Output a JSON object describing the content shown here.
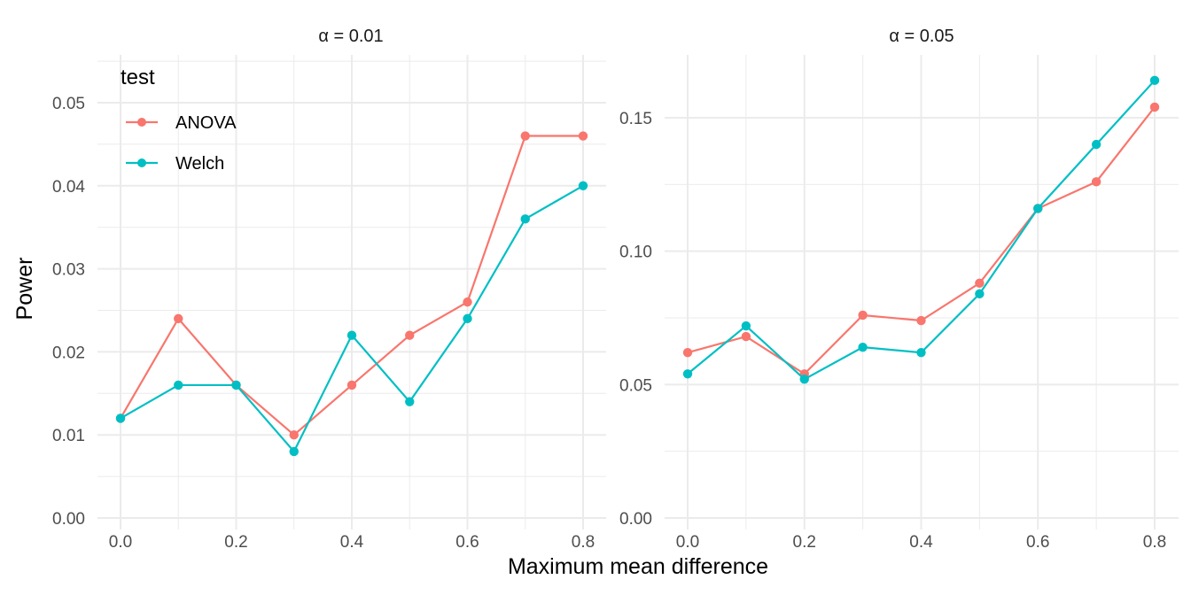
{
  "chart_data": [
    {
      "type": "line",
      "title": "α = 0.01",
      "xlabel": "Maximum mean difference",
      "ylabel": "Power",
      "x": [
        0.0,
        0.1,
        0.2,
        0.3,
        0.4,
        0.5,
        0.6,
        0.7,
        0.8
      ],
      "xticks": [
        "0.0",
        "0.2",
        "0.4",
        "0.6",
        "0.8"
      ],
      "xtick_values": [
        0.0,
        0.2,
        0.4,
        0.6,
        0.8
      ],
      "yticks": [
        "0.00",
        "0.01",
        "0.02",
        "0.03",
        "0.04",
        "0.05"
      ],
      "ytick_values": [
        0,
        0.01,
        0.02,
        0.03,
        0.04,
        0.05
      ],
      "ylim": [
        0,
        0.05
      ],
      "grid": true,
      "series": [
        {
          "name": "ANOVA",
          "color": "#F8766D",
          "values": [
            0.012,
            0.024,
            0.016,
            0.01,
            0.016,
            0.022,
            0.026,
            0.046,
            0.046
          ]
        },
        {
          "name": "Welch",
          "color": "#00BFC4",
          "values": [
            0.012,
            0.016,
            0.016,
            0.008,
            0.022,
            0.014,
            0.024,
            0.036,
            0.04
          ]
        }
      ]
    },
    {
      "type": "line",
      "title": "α = 0.05",
      "xlabel": "Maximum mean difference",
      "ylabel": "Power",
      "x": [
        0.0,
        0.1,
        0.2,
        0.3,
        0.4,
        0.5,
        0.6,
        0.7,
        0.8
      ],
      "xticks": [
        "0.0",
        "0.2",
        "0.4",
        "0.6",
        "0.8"
      ],
      "xtick_values": [
        0.0,
        0.2,
        0.4,
        0.6,
        0.8
      ],
      "yticks": [
        "0.00",
        "0.05",
        "0.10",
        "0.15"
      ],
      "ytick_values": [
        0,
        0.05,
        0.1,
        0.15
      ],
      "ylim": [
        0,
        0.15
      ],
      "grid": true,
      "series": [
        {
          "name": "ANOVA",
          "color": "#F8766D",
          "values": [
            0.062,
            0.068,
            0.054,
            0.076,
            0.074,
            0.088,
            0.116,
            0.126,
            0.154
          ]
        },
        {
          "name": "Welch",
          "color": "#00BFC4",
          "values": [
            0.054,
            0.072,
            0.052,
            0.064,
            0.062,
            0.084,
            0.116,
            0.14,
            0.164
          ]
        }
      ]
    }
  ],
  "legend": {
    "title": "test",
    "placement": "top-left",
    "items": [
      {
        "label": "ANOVA",
        "color": "#F8766D"
      },
      {
        "label": "Welch",
        "color": "#00BFC4"
      }
    ]
  },
  "xlabel": "Maximum mean difference",
  "ylabel": "Power"
}
